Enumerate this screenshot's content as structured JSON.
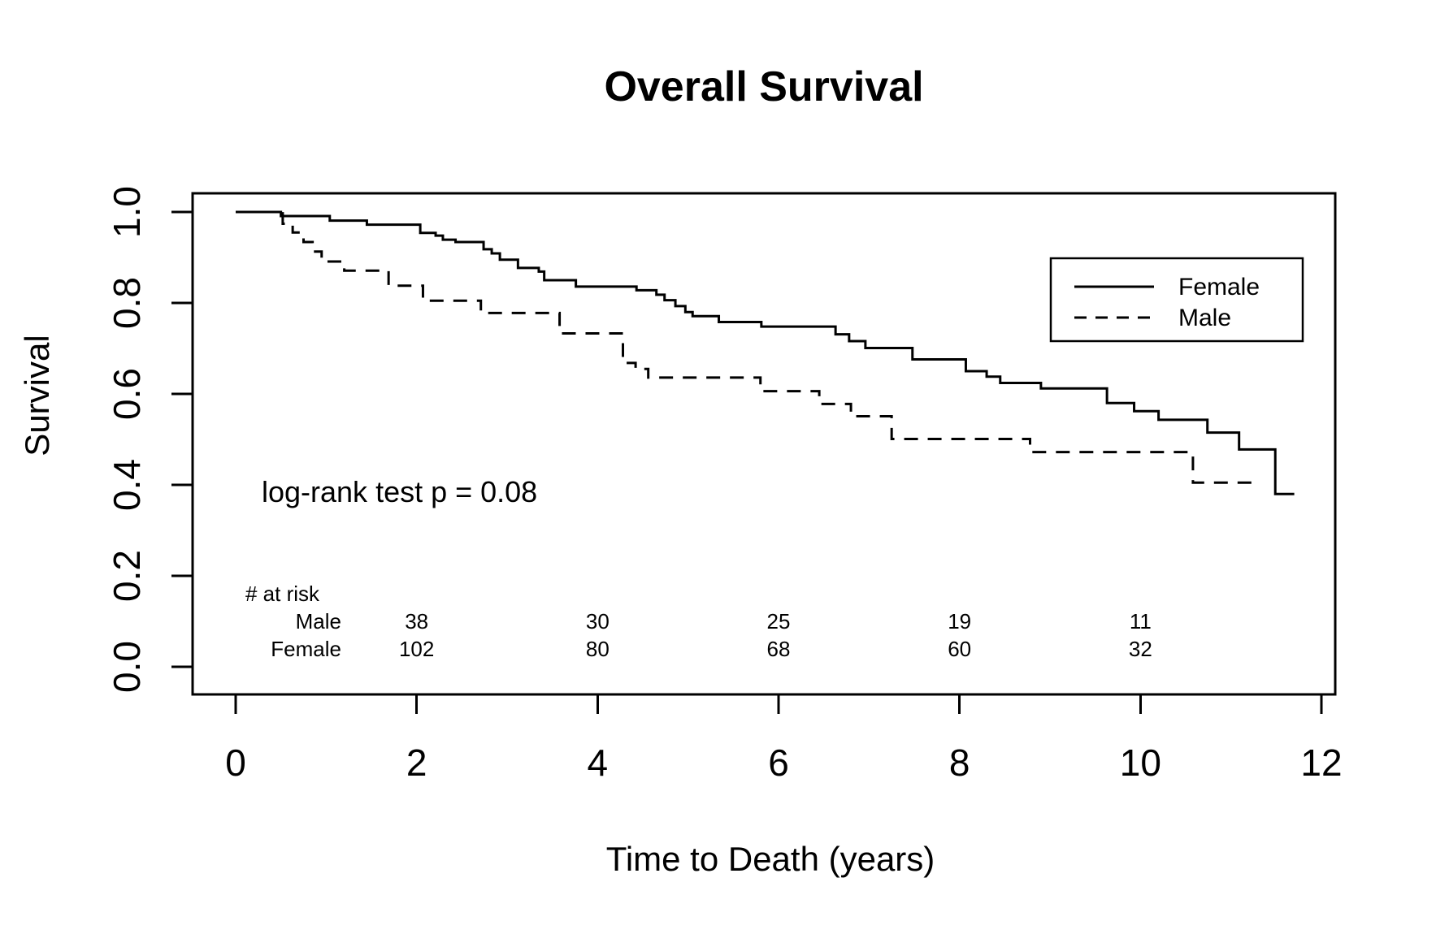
{
  "title": "Overall Survival",
  "x_axis": {
    "label": "Time to Death (years)",
    "tick_labels": [
      "0",
      "2",
      "4",
      "6",
      "8",
      "10",
      "12"
    ],
    "tick_values": [
      0,
      2,
      4,
      6,
      8,
      10,
      12
    ]
  },
  "y_axis": {
    "label": "Survival",
    "tick_labels": [
      "0.0",
      "0.2",
      "0.4",
      "0.6",
      "0.8",
      "1.0"
    ],
    "tick_values": [
      0.0,
      0.2,
      0.4,
      0.6,
      0.8,
      1.0
    ]
  },
  "annotation": "log-rank test p = 0.08",
  "legend": {
    "items": [
      {
        "label": "Female",
        "line_style": "solid"
      },
      {
        "label": "Male",
        "line_style": "dashed"
      }
    ]
  },
  "risk_table": {
    "header": "# at risk",
    "times": [
      2,
      4,
      6,
      8,
      10
    ],
    "rows": [
      {
        "label": "Male",
        "counts": [
          "38",
          "30",
          "25",
          "19",
          "11"
        ]
      },
      {
        "label": "Female",
        "counts": [
          "102",
          "80",
          "68",
          "60",
          "32"
        ]
      }
    ]
  },
  "colors": {
    "line": "#000000",
    "background": "#ffffff",
    "text": "#000000"
  },
  "chart_data": {
    "type": "line",
    "subtype": "kaplan-meier-step",
    "title": "Overall Survival",
    "xlabel": "Time to Death (years)",
    "ylabel": "Survival",
    "xlim": [
      0,
      12
    ],
    "ylim": [
      0.0,
      1.0
    ],
    "grid": false,
    "legend_position": "upper right",
    "annotation": "log-rank test p = 0.08",
    "series": [
      {
        "name": "Female",
        "line_style": "solid",
        "end_time": 11.7,
        "points": [
          [
            0.0,
            1.0
          ],
          [
            0.5,
            0.991
          ],
          [
            1.04,
            0.981
          ],
          [
            1.45,
            0.972
          ],
          [
            2.04,
            0.954
          ],
          [
            2.21,
            0.948
          ],
          [
            2.29,
            0.939
          ],
          [
            2.43,
            0.934
          ],
          [
            2.74,
            0.918
          ],
          [
            2.83,
            0.909
          ],
          [
            2.92,
            0.895
          ],
          [
            3.12,
            0.877
          ],
          [
            3.35,
            0.869
          ],
          [
            3.41,
            0.85
          ],
          [
            3.76,
            0.836
          ],
          [
            4.43,
            0.828
          ],
          [
            4.65,
            0.818
          ],
          [
            4.74,
            0.806
          ],
          [
            4.86,
            0.793
          ],
          [
            4.97,
            0.78
          ],
          [
            5.05,
            0.771
          ],
          [
            5.34,
            0.758
          ],
          [
            5.81,
            0.748
          ],
          [
            6.63,
            0.731
          ],
          [
            6.78,
            0.716
          ],
          [
            6.96,
            0.701
          ],
          [
            7.48,
            0.676
          ],
          [
            8.07,
            0.65
          ],
          [
            8.3,
            0.638
          ],
          [
            8.45,
            0.624
          ],
          [
            8.9,
            0.612
          ],
          [
            9.63,
            0.58
          ],
          [
            9.93,
            0.562
          ],
          [
            10.2,
            0.543
          ],
          [
            10.74,
            0.515
          ],
          [
            11.09,
            0.478
          ],
          [
            11.49,
            0.38
          ]
        ]
      },
      {
        "name": "Male",
        "line_style": "dashed",
        "end_time": 11.28,
        "points": [
          [
            0.0,
            1.0
          ],
          [
            0.52,
            0.974
          ],
          [
            0.63,
            0.955
          ],
          [
            0.75,
            0.934
          ],
          [
            0.85,
            0.913
          ],
          [
            0.95,
            0.891
          ],
          [
            1.2,
            0.871
          ],
          [
            1.69,
            0.838
          ],
          [
            2.07,
            0.805
          ],
          [
            2.71,
            0.778
          ],
          [
            3.58,
            0.733
          ],
          [
            4.28,
            0.668
          ],
          [
            4.42,
            0.655
          ],
          [
            4.56,
            0.636
          ],
          [
            5.8,
            0.606
          ],
          [
            6.45,
            0.578
          ],
          [
            6.8,
            0.551
          ],
          [
            7.25,
            0.501
          ],
          [
            8.78,
            0.472
          ],
          [
            10.58,
            0.405
          ]
        ]
      }
    ],
    "at_risk": {
      "times": [
        2,
        4,
        6,
        8,
        10
      ],
      "Male": [
        38,
        30,
        25,
        19,
        11
      ],
      "Female": [
        102,
        80,
        68,
        60,
        32
      ]
    }
  }
}
